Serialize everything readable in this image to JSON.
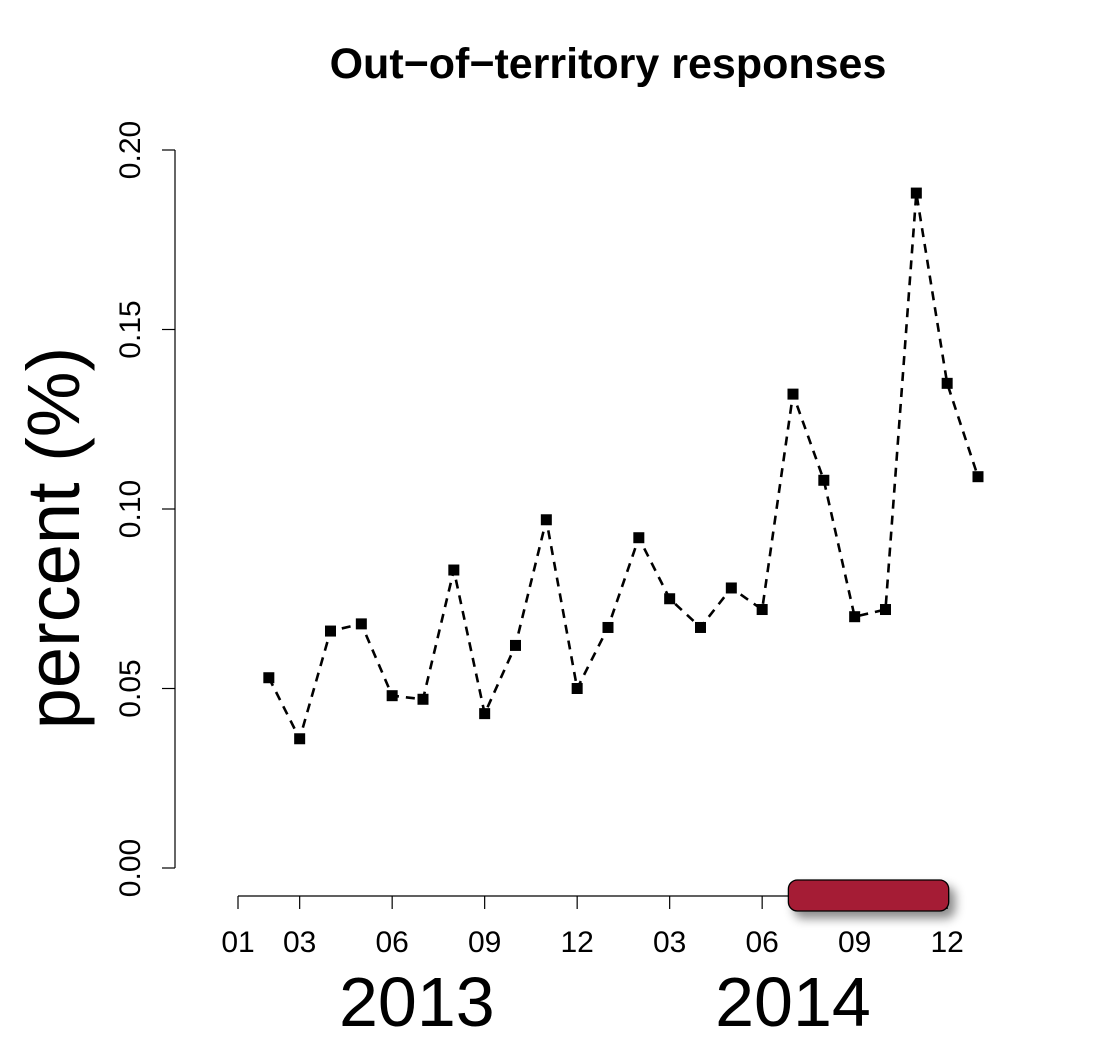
{
  "chart_data": {
    "type": "line",
    "title": "Out−of−territory responses",
    "ylabel": "percent (%)",
    "xlabel": "",
    "ylim": [
      0,
      0.2
    ],
    "y_ticks": [
      "0.00",
      "0.05",
      "0.10",
      "0.15",
      "0.20"
    ],
    "x_ticks": [
      "01",
      "03",
      "06",
      "09",
      "12",
      "03",
      "06",
      "09",
      "12"
    ],
    "years": [
      "2013",
      "2014"
    ],
    "grid": false,
    "line_style": "dashed",
    "marker": "square",
    "colors": {
      "line": "#000000",
      "highlight": "#a51c36"
    },
    "highlight_period": {
      "start": "2014-07",
      "end": "2014-12"
    },
    "series": [
      {
        "x": [
          "2013-02",
          "2013-03",
          "2013-04",
          "2013-05",
          "2013-06",
          "2013-07",
          "2013-08",
          "2013-09",
          "2013-10",
          "2013-11",
          "2013-12",
          "2014-01",
          "2014-02",
          "2014-03",
          "2014-04",
          "2014-05",
          "2014-06",
          "2014-07",
          "2014-08",
          "2014-09",
          "2014-10",
          "2014-11",
          "2014-12",
          "2015-01"
        ],
        "values": [
          0.053,
          0.036,
          0.066,
          0.068,
          0.048,
          0.047,
          0.083,
          0.043,
          0.062,
          0.097,
          0.05,
          0.067,
          0.092,
          0.075,
          0.067,
          0.078,
          0.072,
          0.132,
          0.108,
          0.07,
          0.072,
          0.188,
          0.135,
          0.109
        ]
      }
    ]
  }
}
